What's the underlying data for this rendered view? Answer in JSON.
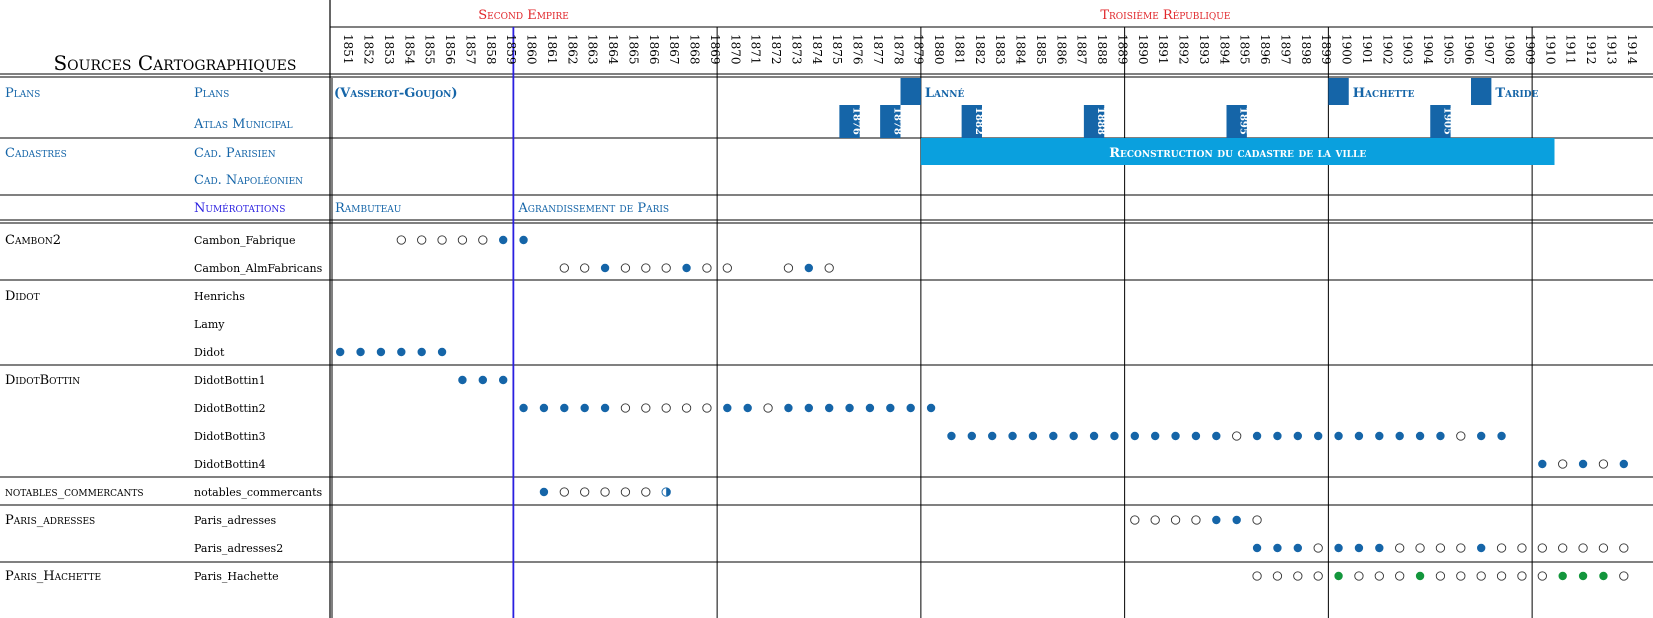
{
  "title": "Sources Cartographiques",
  "colors": {
    "blue": "#1565a8",
    "lightblue": "#0aa0de",
    "periodred": "#e0262a",
    "violet": "#2a1fe0",
    "green": "#13963c",
    "line": "#000000"
  },
  "years": {
    "start": 1851,
    "end": 1914
  },
  "periods": [
    {
      "label": "Second Empire",
      "start": 1851,
      "end": 1870
    },
    {
      "label": "Troisième République",
      "start": 1870,
      "end": 1914
    }
  ],
  "decade_lines": [
    1860,
    1870,
    1880,
    1890,
    1900,
    1910
  ],
  "sections": [
    {
      "group": "Plans",
      "group_color": "blue",
      "rows": [
        {
          "label": "Plans",
          "color": "blue"
        },
        {
          "label": "Atlas Municipal",
          "color": "blue"
        }
      ]
    },
    {
      "group": "Cadastres",
      "group_color": "blue",
      "rows": [
        {
          "label": "Cad. Parisien",
          "color": "blue"
        },
        {
          "label": "Cad. Napoléonien",
          "color": "blue"
        }
      ]
    },
    {
      "group": "",
      "group_color": "violet",
      "rows": [
        {
          "label": "Numérotations",
          "color": "violet"
        }
      ]
    },
    {
      "group": "Cambon2",
      "rows": [
        {
          "label": "Cambon_Fabrique"
        },
        {
          "label": "Cambon_AlmFabricans"
        }
      ]
    },
    {
      "group": "Didot",
      "rows": [
        {
          "label": "Henrichs"
        },
        {
          "label": "Lamy"
        },
        {
          "label": "Didot"
        }
      ]
    },
    {
      "group": "DidotBottin",
      "rows": [
        {
          "label": "DidotBottin1"
        },
        {
          "label": "DidotBottin2"
        },
        {
          "label": "DidotBottin3"
        },
        {
          "label": "DidotBottin4"
        }
      ]
    },
    {
      "group": "notables_commercants",
      "rows": [
        {
          "label": "notables_commercants"
        }
      ]
    },
    {
      "group": "Paris_adresses",
      "rows": [
        {
          "label": "Paris_adresses"
        },
        {
          "label": "Paris_adresses2"
        }
      ]
    },
    {
      "group": "Paris_Hachette",
      "rows": [
        {
          "label": "Paris_Hachette"
        }
      ]
    }
  ],
  "plan_labels": [
    {
      "text": "(Vasserot-Goujon)",
      "row": 0,
      "start": 1851
    },
    {
      "text": "Lanné",
      "row": 0,
      "start": 1880
    },
    {
      "text": "Hachette",
      "row": 0,
      "start": 1901
    },
    {
      "text": "Taride",
      "row": 0,
      "start": 1908
    }
  ],
  "plan_markers": [
    {
      "row": 0,
      "year": 1879
    },
    {
      "row": 0,
      "year": 1900
    },
    {
      "row": 0,
      "year": 1907
    }
  ],
  "atlas_markers": [
    {
      "row": 1,
      "year": 1876,
      "label": "1876"
    },
    {
      "row": 1,
      "year": 1878,
      "label": "1878"
    },
    {
      "row": 1,
      "year": 1882,
      "label": "1882"
    },
    {
      "row": 1,
      "year": 1888,
      "label": "1888"
    },
    {
      "row": 1,
      "year": 1895,
      "label": "1895"
    },
    {
      "row": 1,
      "year": 1905,
      "label": "1905"
    }
  ],
  "cadastre_bar": {
    "label": "Reconstruction du cadastre de la ville",
    "start": 1880,
    "end": 1911,
    "rows": [
      2,
      3
    ]
  },
  "numerotation_labels": [
    {
      "text": "Rambuteau",
      "start": 1851
    },
    {
      "text": "Agrandissement de Paris",
      "start": 1860
    }
  ],
  "dots": [
    {
      "row": 5,
      "filled": [
        1859,
        1860
      ],
      "empty": [
        1854,
        1855,
        1856,
        1857,
        1858
      ]
    },
    {
      "row": 6,
      "filled": [
        1864,
        1868,
        1874
      ],
      "empty": [
        1862,
        1863,
        1865,
        1866,
        1867,
        1869,
        1870,
        1873,
        1875
      ]
    },
    {
      "row": 9,
      "filled": [
        1851,
        1852,
        1853,
        1854,
        1855,
        1856
      ]
    },
    {
      "row": 10,
      "filled": [
        1857,
        1858,
        1859
      ]
    },
    {
      "row": 11,
      "filled": [
        1860,
        1861,
        1862,
        1863,
        1864,
        1870,
        1871,
        1873,
        1874,
        1875,
        1876,
        1877,
        1878,
        1879,
        1880
      ],
      "empty": [
        1865,
        1866,
        1867,
        1868,
        1869,
        1872
      ]
    },
    {
      "row": 12,
      "filled": [
        1881,
        1882,
        1883,
        1884,
        1885,
        1886,
        1887,
        1888,
        1889,
        1890,
        1891,
        1892,
        1893,
        1894,
        1896,
        1897,
        1898,
        1899,
        1900,
        1901,
        1902,
        1903,
        1904,
        1905,
        1907,
        1908
      ],
      "empty": [
        1895,
        1906
      ]
    },
    {
      "row": 13,
      "filled": [
        1910,
        1912,
        1914
      ],
      "empty": [
        1911,
        1913
      ]
    },
    {
      "row": 14,
      "filled": [],
      "empty": [
        1862,
        1863,
        1864,
        1865,
        1866
      ],
      "partial": [
        1867
      ],
      "filled2": [
        1861
      ]
    },
    {
      "row": 15,
      "filled": [
        1894,
        1895
      ],
      "empty": [
        1890,
        1891,
        1892,
        1893,
        1896
      ]
    },
    {
      "row": 16,
      "filled": [
        1896,
        1897,
        1898,
        1900,
        1901,
        1902,
        1907
      ],
      "empty": [
        1899,
        1903,
        1904,
        1905,
        1906,
        1908,
        1909,
        1910,
        1911,
        1912,
        1913,
        1914
      ]
    },
    {
      "row": 17,
      "green": [
        1900,
        1904,
        1911,
        1912,
        1913
      ],
      "empty": [
        1896,
        1897,
        1898,
        1899,
        1901,
        1902,
        1903,
        1905,
        1906,
        1907,
        1908,
        1909,
        1910,
        1914
      ]
    }
  ]
}
